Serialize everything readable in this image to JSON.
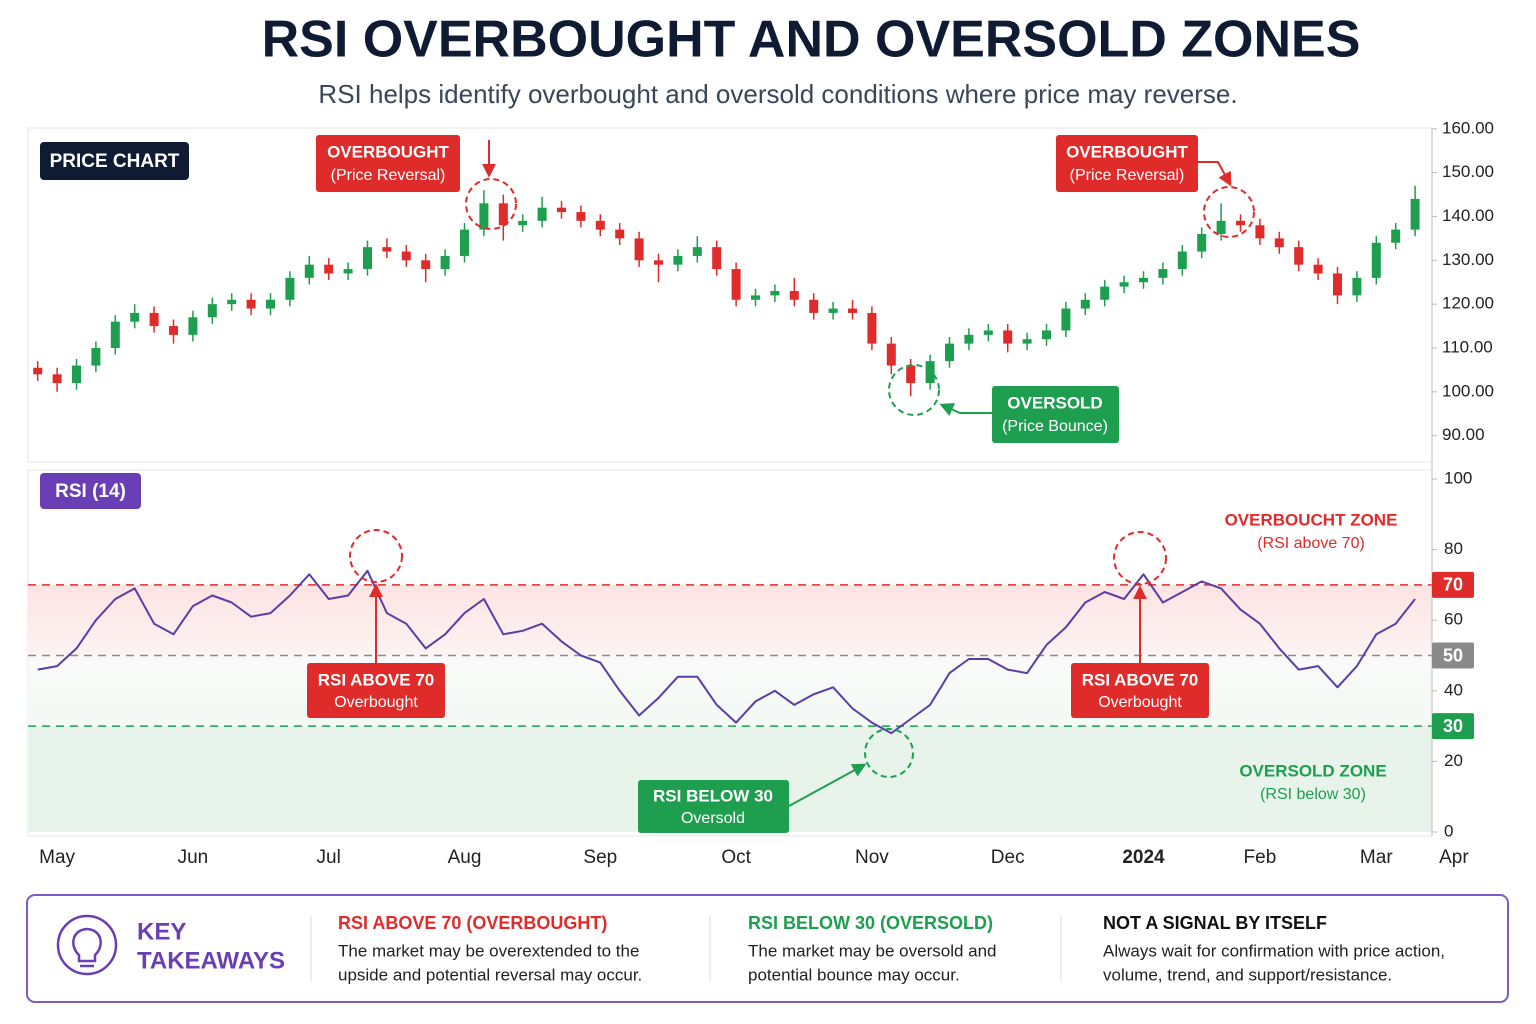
{
  "title": "RSI OVERBOUGHT AND OVERSOLD ZONES",
  "subtitle": "RSI helps identify overbought and oversold conditions where price may reverse.",
  "chart_data": {
    "type": "candlestick",
    "label": "PRICE CHART",
    "categories": [
      null,
      "May",
      null,
      null,
      null,
      null,
      null,
      null,
      "Jun",
      null,
      null,
      null,
      null,
      null,
      null,
      "Jul",
      null,
      null,
      null,
      null,
      null,
      null,
      "Aug",
      null,
      null,
      null,
      null,
      null,
      null,
      "Sep",
      null,
      null,
      null,
      null,
      null,
      null,
      "Oct",
      null,
      null,
      null,
      null,
      null,
      null,
      "Nov",
      null,
      null,
      null,
      null,
      null,
      null,
      "Dec",
      null,
      null,
      null,
      null,
      null,
      null,
      "2024",
      null,
      null,
      null,
      null,
      null,
      "Feb",
      null,
      null,
      null,
      null,
      null,
      "Mar",
      null,
      null,
      null,
      "Apr"
    ],
    "open": [
      105.5,
      104,
      102,
      106,
      110,
      116,
      118,
      115,
      113,
      117,
      120,
      121,
      119,
      121,
      126,
      129,
      127,
      128,
      133,
      132,
      130,
      128,
      131,
      137,
      143,
      138,
      139,
      142,
      141,
      139,
      137,
      135,
      130,
      129,
      131,
      133,
      128,
      121,
      122,
      123,
      121,
      118,
      119,
      118,
      111,
      106,
      102,
      107,
      111,
      113,
      114,
      111,
      112,
      114,
      119,
      121,
      124,
      125,
      126,
      128,
      132,
      136,
      139,
      138,
      135,
      133,
      129,
      127,
      122,
      126,
      134,
      137,
      null,
      null
    ],
    "high": [
      107,
      105.5,
      107.5,
      111.5,
      117.5,
      120,
      119.5,
      116.5,
      118.5,
      121.5,
      122.5,
      122.5,
      122.5,
      127.5,
      131,
      130.5,
      129.5,
      134.5,
      135,
      133.5,
      131.5,
      132.5,
      138.5,
      146,
      145,
      140.5,
      144.5,
      143.5,
      142.5,
      140.5,
      138.5,
      136.5,
      131.5,
      132.5,
      135.5,
      134.5,
      129.5,
      123.5,
      124.5,
      126,
      122.5,
      120.5,
      121,
      119.5,
      112.5,
      107.5,
      108.5,
      112.5,
      114.5,
      115.5,
      115.5,
      113.5,
      115.5,
      120.5,
      122.5,
      125.5,
      126.5,
      127.5,
      129.5,
      133.5,
      137.5,
      143,
      140.5,
      139.5,
      136.5,
      134.5,
      130.5,
      128.5,
      127.5,
      135.5,
      138.5,
      147,
      null,
      null
    ],
    "low": [
      102.5,
      100,
      100.5,
      104.5,
      108.5,
      114.5,
      113.5,
      111,
      111.5,
      115.5,
      118.5,
      117.5,
      117.5,
      119.5,
      124.5,
      125.5,
      125.5,
      126.5,
      130.5,
      128.5,
      125,
      126.5,
      129.5,
      135.5,
      134.5,
      136.5,
      137.5,
      139.5,
      137.5,
      135.5,
      133.5,
      128.5,
      125,
      127.5,
      129.5,
      126.5,
      119.5,
      119.5,
      120.5,
      119.5,
      116.5,
      116.5,
      116.5,
      109.5,
      104,
      99,
      100.5,
      105.5,
      109.5,
      111.5,
      109,
      109.5,
      110.5,
      112.5,
      117.5,
      119.5,
      122.5,
      123.5,
      124.5,
      126.5,
      130.5,
      134.5,
      136.5,
      133.5,
      131.5,
      127.5,
      125.5,
      120,
      120.5,
      124.5,
      132.5,
      135.5,
      null,
      null
    ],
    "close": [
      104,
      102,
      106,
      110,
      116,
      118,
      115,
      113,
      117,
      120,
      121,
      119,
      121,
      126,
      129,
      127,
      128,
      133,
      132,
      130,
      128,
      131,
      137,
      143,
      138,
      139,
      142,
      141,
      139,
      137,
      135,
      130,
      129,
      131,
      133,
      128,
      121,
      122,
      123,
      121,
      118,
      119,
      118,
      111,
      106,
      102,
      107,
      111,
      113,
      114,
      111,
      112,
      114,
      119,
      121,
      124,
      125,
      126,
      128,
      132,
      136,
      139,
      138,
      135,
      133,
      129,
      127,
      122,
      126,
      134,
      137,
      144,
      null,
      null
    ],
    "up_color": "#1e9e4f",
    "down_color": "#e02b2b",
    "ylim": [
      84,
      162
    ],
    "yticks": [
      {
        "value": 90,
        "label": "90.00"
      },
      {
        "value": 100,
        "label": "100.00"
      },
      {
        "value": 110,
        "label": "110.00"
      },
      {
        "value": 120,
        "label": "120.00"
      },
      {
        "value": 130,
        "label": "130.00"
      },
      {
        "value": 140,
        "label": "140.00"
      },
      {
        "value": 150,
        "label": "150.00"
      },
      {
        "value": 160,
        "label": "160.00"
      }
    ],
    "annotations": [
      [
        "OVERBOUGHT",
        "(Price Reversal)"
      ],
      [
        "OVERBOUGHT",
        "(Price Reversal)"
      ],
      [
        "OVERSOLD",
        "(Price Bounce)"
      ]
    ],
    "indicator": {
      "type": "line",
      "label": "RSI (14)",
      "color": "#5a3ea6",
      "values": [
        46,
        47,
        52,
        60,
        66,
        69,
        59,
        56,
        64,
        67,
        65,
        61,
        62,
        67,
        73,
        66,
        67,
        74,
        62,
        59,
        52,
        56,
        62,
        66,
        56,
        57,
        59,
        54,
        50,
        48,
        40,
        33,
        38,
        44,
        44,
        36,
        31,
        37,
        40,
        36,
        39,
        41,
        35,
        31,
        28,
        32,
        36,
        45,
        49,
        49,
        46,
        45,
        53,
        58,
        65,
        68,
        66,
        73,
        65,
        68,
        71,
        69,
        63,
        59,
        52,
        46,
        47,
        41,
        47,
        56,
        59,
        66,
        null,
        null
      ],
      "ylim": [
        0,
        100
      ],
      "yticks": [
        0,
        20,
        40,
        60,
        80,
        100
      ],
      "levels": [
        {
          "value": 70,
          "color": "#e02b2b"
        },
        {
          "value": 50,
          "color": "#8a8a8a"
        },
        {
          "value": 30,
          "color": "#1e9e4f"
        }
      ],
      "zones": [
        [
          "OVERBOUCHT ZONE",
          "(RSI above 70)"
        ],
        [
          "OVERSOLD ZONE",
          "(RSI below 30)"
        ]
      ],
      "annotations": [
        [
          "RSI ABOVE 70",
          "Overbought"
        ],
        [
          "RSI ABOVE 70",
          "Overbought"
        ],
        [
          "RSI BELOW 30",
          "Oversold"
        ]
      ]
    }
  },
  "takeaways": {
    "title": [
      "KEY",
      "TAKEAWAYS"
    ],
    "items": [
      {
        "heading": "RSI ABOVE 70 (OVERBOUGHT)",
        "lines": [
          "The market may be overextended to the",
          "upside and potential reversal may occur."
        ]
      },
      {
        "heading": "RSI BELOW 30 (OVERSOLD)",
        "lines": [
          "The market may be oversold and",
          "potential bounce may occur."
        ]
      },
      {
        "heading": "NOT A SIGNAL BY ITSELF",
        "lines": [
          "Always wait for confirmation with price action,",
          "volume, trend, and support/resistance."
        ]
      }
    ]
  }
}
